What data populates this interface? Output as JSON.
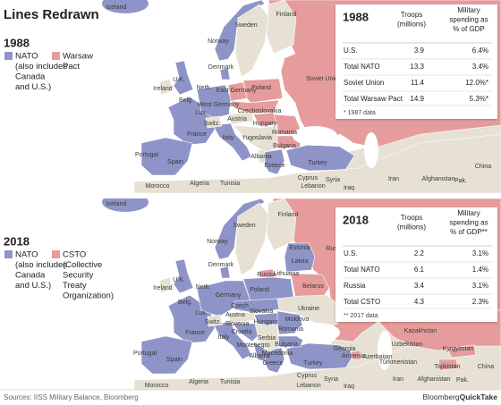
{
  "title": "Lines Redrawn",
  "panels": [
    {
      "year": "1988",
      "legend": [
        {
          "label_lines": [
            "NATO",
            "(also includes",
            "Canada",
            "and U.S.)"
          ],
          "color": "#8e94c7"
        },
        {
          "label_lines": [
            "Warsaw",
            "Pact"
          ],
          "color": "#e69c9c"
        }
      ],
      "map_labels": [
        "Iceland",
        "Finland",
        "Sweden",
        "Norway",
        "Denmark",
        "Soviet Union",
        "Ireland",
        "U.K.",
        "Neth.",
        "East Germany",
        "Poland",
        "West Germany",
        "Belg.",
        "Lux.",
        "Czechoslovakia",
        "Switz.",
        "Austria",
        "Hungary",
        "France",
        "Italy",
        "Yugoslavia",
        "Romania",
        "Bulgaria",
        "Portugal",
        "Spain",
        "Albania",
        "Greece",
        "Turkey",
        "Morocco",
        "Algeria",
        "Tunisia",
        "Cyprus",
        "Lebanon",
        "Syria",
        "Iraq",
        "Iran",
        "Afghanistan",
        "Pak.",
        "China"
      ],
      "table": {
        "troops_header": [
          "Troops",
          "(millions)"
        ],
        "spending_header": [
          "Military",
          "spending as",
          "% of GDP"
        ],
        "rows": [
          [
            "U.S.",
            "3.9",
            "6.4%"
          ],
          [
            "Total NATO",
            "13.3",
            "3.4%"
          ],
          [
            "Soviet Union",
            "11.4",
            "12.0%*"
          ],
          [
            "Total Warsaw Pact",
            "14.9",
            "5.3%*"
          ]
        ],
        "note": "* 1987 data"
      }
    },
    {
      "year": "2018",
      "legend": [
        {
          "label_lines": [
            "NATO",
            "(also includes",
            "Canada",
            "and U.S.)"
          ],
          "color": "#8e94c7"
        },
        {
          "label_lines": [
            "CSTO",
            "(Collective",
            "Security",
            "Treaty",
            "Organization)"
          ],
          "color": "#e69c9c"
        }
      ],
      "map_labels": [
        "Iceland",
        "Finland",
        "Sweden",
        "Norway",
        "Estonia",
        "Russia",
        "Denmark",
        "Latvia",
        "Lithuania",
        "Russia",
        "Ireland",
        "U.K.",
        "Neth.",
        "Belarus",
        "Poland",
        "Germany",
        "Belg.",
        "Czech",
        "Slovakia",
        "Ukraine",
        "Lux.",
        "Austria",
        "Moldova",
        "Switz.",
        "Slovenia",
        "Hungary",
        "Croatia",
        "Romania",
        "France",
        "Serbia",
        "Italy",
        "Montenegro",
        "Bulgaria",
        "Macedonia",
        "Georgia",
        "Albania",
        "Armenia",
        "Azerbaijan",
        "Greece",
        "Spain",
        "Portugal",
        "Turkey",
        "Turkmenistan",
        "Kazakhstan",
        "Uzbekistan",
        "Kyrgyzstan",
        "Tajikistan",
        "Morocco",
        "Algeria",
        "Tunisia",
        "Cyprus",
        "Lebanon",
        "Syria",
        "Iraq",
        "Iran",
        "Afghanistan",
        "Pak.",
        "China"
      ],
      "table": {
        "troops_header": [
          "Troops",
          "(millions)"
        ],
        "spending_header": [
          "Military",
          "spending as",
          "% of GDP**"
        ],
        "rows": [
          [
            "U.S.",
            "2.2",
            "3.1%"
          ],
          [
            "Total NATO",
            "6.1",
            "1.4%"
          ],
          [
            "Russia",
            "3.4",
            "3.1%"
          ],
          [
            "Total CSTO",
            "4.3",
            "2.3%"
          ]
        ],
        "note": "** 2017 data"
      }
    }
  ],
  "footer": {
    "source": "Sources: IISS Military Balance, Bloomberg",
    "brand": "Bloomberg",
    "product": "QuickTake"
  }
}
